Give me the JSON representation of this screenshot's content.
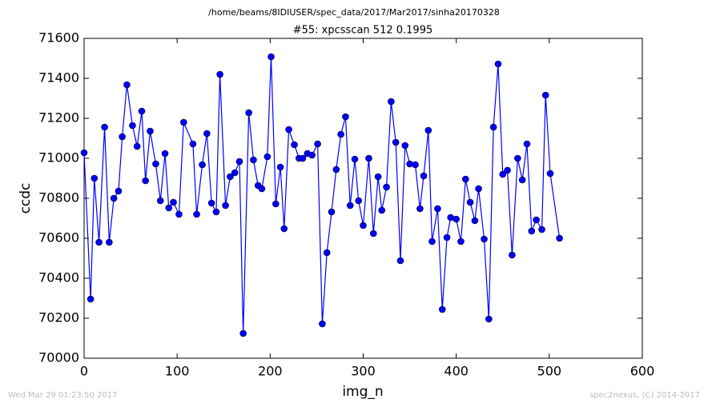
{
  "suptitle": "/home/beams/8IDIUSER/spec_data/2017/Mar2017/sinha20170328",
  "footer_left": "Wed Mar 29 01:23:50 2017",
  "footer_right": "spec2nexus, (C) 2014-2017",
  "chart_data": {
    "type": "line",
    "title": "#55: xpcsscan 512 0.1995",
    "x_label": "img_n",
    "y_label": "ccdc",
    "xlim": [
      0,
      600
    ],
    "xticks": [
      0,
      100,
      200,
      300,
      400,
      500,
      600
    ],
    "ylim": [
      70000,
      71600
    ],
    "yticks": [
      70000,
      70200,
      70400,
      70600,
      70800,
      71000,
      71200,
      71400,
      71600
    ],
    "series": [
      {
        "color": "#0000ff",
        "x": [
          0,
          7,
          11,
          16,
          22,
          27,
          32,
          37,
          41,
          46,
          52,
          57,
          62,
          66,
          71,
          77,
          82,
          87,
          91,
          96,
          102,
          107,
          117,
          121,
          127,
          132,
          137,
          142,
          146,
          152,
          157,
          162,
          167,
          171,
          177,
          182,
          187,
          191,
          197,
          201,
          206,
          211,
          215,
          220,
          226,
          231,
          235,
          240,
          245,
          251,
          256,
          261,
          266,
          271,
          276,
          281,
          286,
          291,
          295,
          300,
          306,
          311,
          316,
          320,
          325,
          330,
          335,
          340,
          345,
          350,
          356,
          361,
          365,
          370,
          374,
          380,
          385,
          390,
          394,
          400,
          405,
          410,
          415,
          420,
          424,
          430,
          435,
          440,
          445,
          450,
          455,
          460,
          466,
          471,
          476,
          481,
          486,
          492,
          496,
          501,
          511
        ],
        "values": [
          71028,
          70296,
          70900,
          70580,
          71156,
          70580,
          70800,
          70836,
          71108,
          71368,
          71164,
          71060,
          71236,
          70888,
          71136,
          70972,
          70788,
          71024,
          70752,
          70780,
          70720,
          71180,
          71072,
          70720,
          70968,
          71124,
          70776,
          70732,
          71420,
          70764,
          70908,
          70928,
          70984,
          70124,
          71228,
          70992,
          70864,
          70848,
          71008,
          71508,
          70772,
          70956,
          70648,
          71144,
          71068,
          71000,
          71000,
          71024,
          71016,
          71072,
          70172,
          70528,
          70732,
          70944,
          71120,
          71208,
          70764,
          70996,
          70788,
          70664,
          71000,
          70624,
          70908,
          70740,
          70856,
          71284,
          71080,
          70488,
          71064,
          70972,
          70968,
          70748,
          70912,
          71140,
          70584,
          70748,
          70244,
          70604,
          70704,
          70696,
          70584,
          70896,
          70780,
          70688,
          70848,
          70596,
          70196,
          71156,
          71472,
          70920,
          70940,
          70516,
          71000,
          70892,
          71072,
          70636,
          70692,
          70644,
          71316,
          70924,
          70600
        ]
      }
    ]
  }
}
